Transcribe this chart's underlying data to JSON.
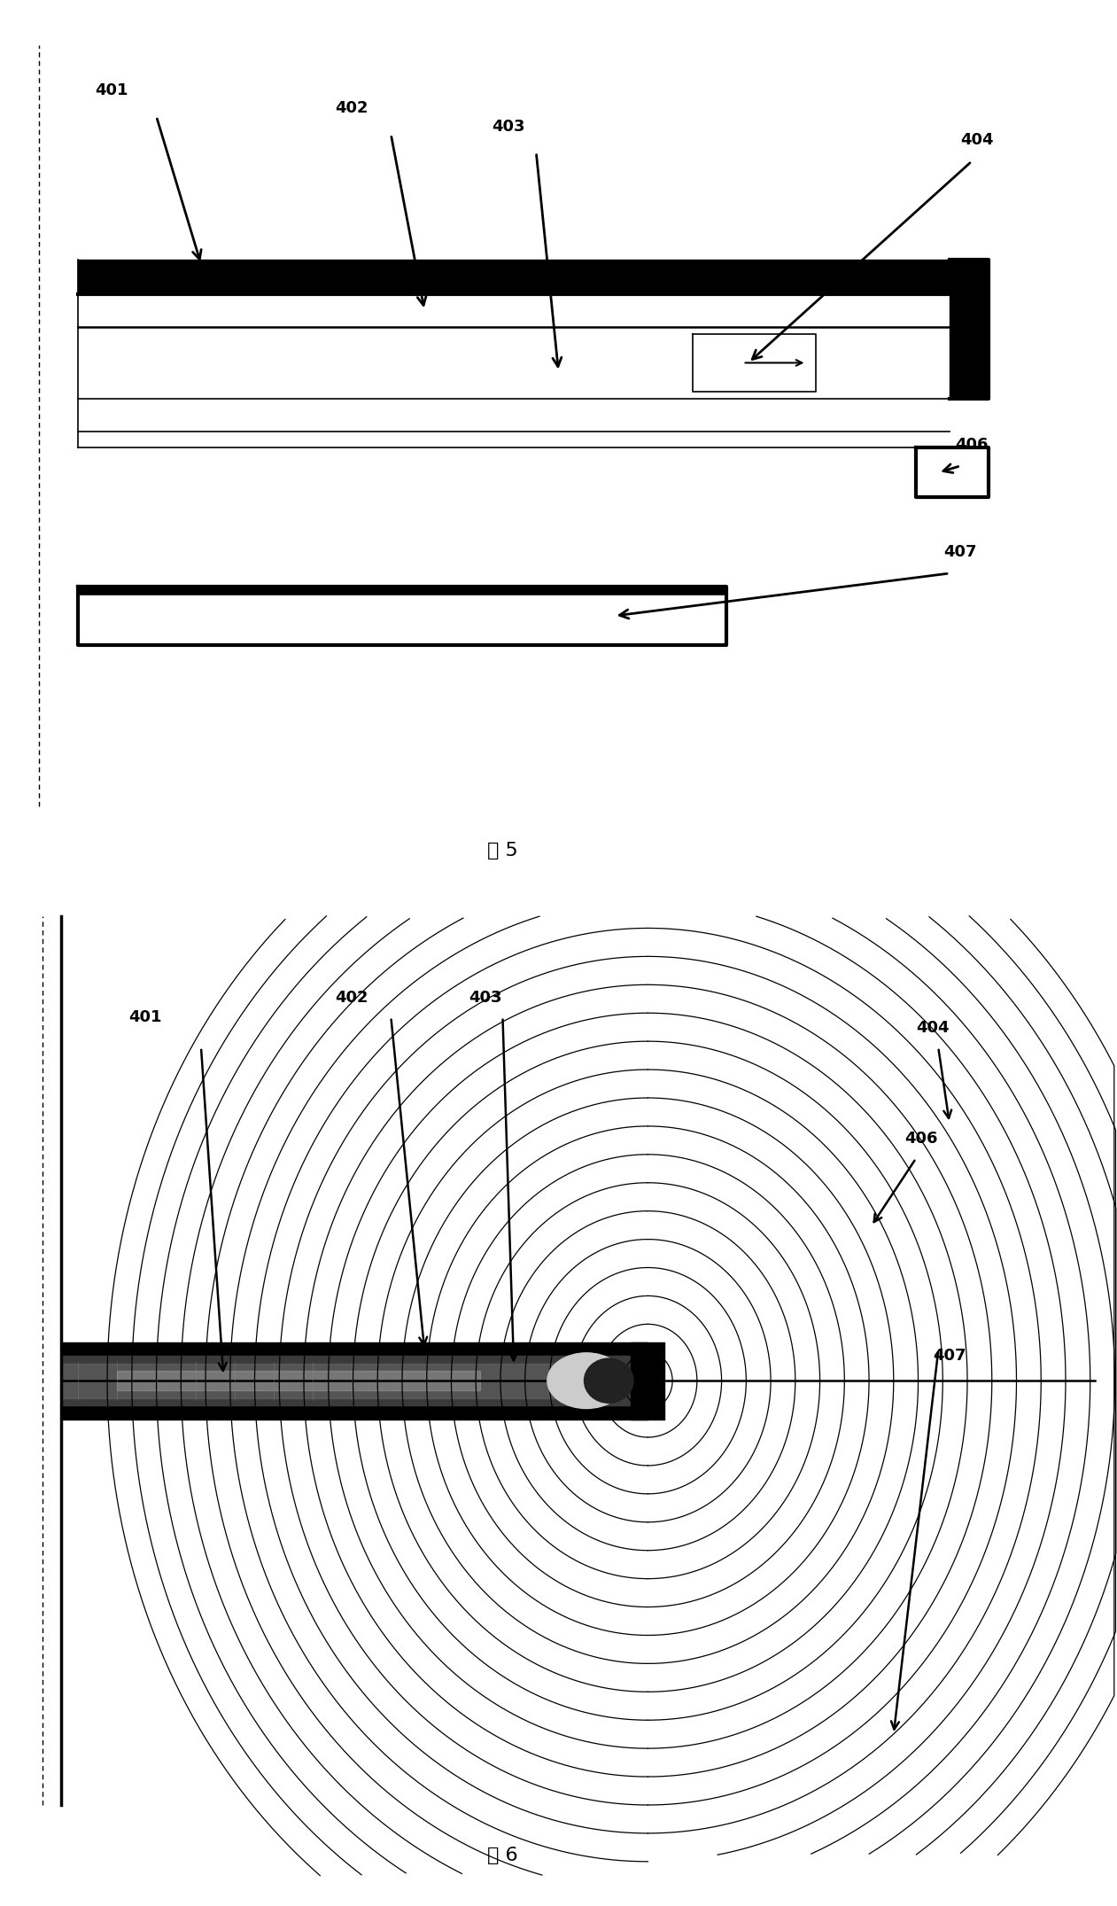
{
  "fig_width": 12.61,
  "fig_height": 21.51,
  "bg_color": "#ffffff",
  "fig5_title": "图 5",
  "fig6_title": "图 6"
}
